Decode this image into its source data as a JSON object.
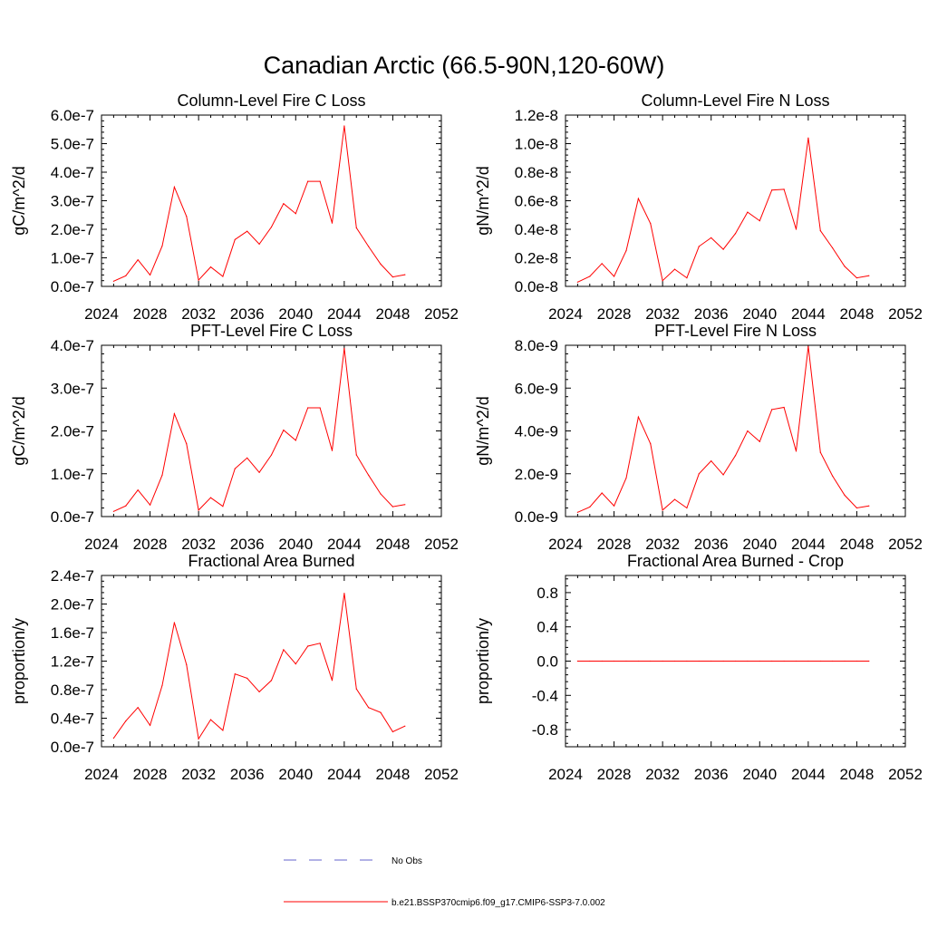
{
  "page_title": "Canadian Arctic (66.5-90N,120-60W)",
  "legend": {
    "items": [
      {
        "label": "No Obs",
        "color": "#6666cc",
        "dash": "dashed"
      },
      {
        "label": "b.e21.BSSP370cmip6.f09_g17.CMIP6-SSP3-7.0.002",
        "color": "#ff0000",
        "dash": "solid"
      }
    ],
    "placement": "bottom-center"
  },
  "chart_data": [
    {
      "type": "line",
      "title": "Column-Level Fire C Loss",
      "xlabel": "",
      "ylabel": "gC/m^2/d",
      "xlim": [
        2024,
        2052
      ],
      "ylim": [
        0,
        6e-07
      ],
      "xticks": [
        2024,
        2028,
        2032,
        2036,
        2040,
        2044,
        2048,
        2052
      ],
      "xtick_labels": [
        "2024",
        "2028",
        "2032",
        "2036",
        "2040",
        "2044",
        "2048",
        "2052"
      ],
      "yticks": [
        0,
        1e-07,
        2e-07,
        3e-07,
        4e-07,
        5e-07,
        6e-07
      ],
      "ytick_labels": [
        "0.0e-7",
        "1.0e-7",
        "2.0e-7",
        "3.0e-7",
        "4.0e-7",
        "5.0e-7",
        "6.0e-7"
      ],
      "series": [
        {
          "color": "#ff0000",
          "x": [
            2025,
            2026,
            2027,
            2028,
            2029,
            2030,
            2031,
            2032,
            2033,
            2034,
            2035,
            2036,
            2037,
            2038,
            2039,
            2040,
            2041,
            2042,
            2043,
            2044,
            2045,
            2046,
            2047,
            2048,
            2049
          ],
          "y": [
            1.8e-08,
            3.7e-08,
            9.3e-08,
            4e-08,
            1.42e-07,
            3.48e-07,
            2.45e-07,
            2.2e-08,
            6.8e-08,
            3.5e-08,
            1.64e-07,
            1.93e-07,
            1.48e-07,
            2.08e-07,
            2.9e-07,
            2.55e-07,
            3.68e-07,
            3.68e-07,
            2.22e-07,
            5.62e-07,
            2.05e-07,
            1.4e-07,
            7.8e-08,
            3.3e-08,
            4.1e-08
          ]
        }
      ]
    },
    {
      "type": "line",
      "title": "Column-Level Fire N Loss",
      "xlabel": "",
      "ylabel": "gN/m^2/d",
      "xlim": [
        2024,
        2052
      ],
      "ylim": [
        0,
        1.2e-08
      ],
      "xticks": [
        2024,
        2028,
        2032,
        2036,
        2040,
        2044,
        2048,
        2052
      ],
      "xtick_labels": [
        "2024",
        "2028",
        "2032",
        "2036",
        "2040",
        "2044",
        "2048",
        "2052"
      ],
      "yticks": [
        0,
        2e-09,
        4e-09,
        6e-09,
        8e-09,
        1e-08,
        1.2e-08
      ],
      "ytick_labels": [
        "0.0e-8",
        "0.2e-8",
        "0.4e-8",
        "0.6e-8",
        "0.8e-8",
        "1.0e-8",
        "1.2e-8"
      ],
      "series": [
        {
          "color": "#ff0000",
          "x": [
            2025,
            2026,
            2027,
            2028,
            2029,
            2030,
            2031,
            2032,
            2033,
            2034,
            2035,
            2036,
            2037,
            2038,
            2039,
            2040,
            2041,
            2042,
            2043,
            2044,
            2045,
            2046,
            2047,
            2048,
            2049
          ],
          "y": [
            3e-10,
            7e-10,
            1.6e-09,
            7e-10,
            2.5e-09,
            6.15e-09,
            4.4e-09,
            4e-10,
            1.2e-09,
            6e-10,
            2.8e-09,
            3.4e-09,
            2.6e-09,
            3.7e-09,
            5.2e-09,
            4.6e-09,
            6.75e-09,
            6.8e-09,
            4e-09,
            1.04e-08,
            3.9e-09,
            2.7e-09,
            1.4e-09,
            6e-10,
            7.5e-10
          ]
        }
      ]
    },
    {
      "type": "line",
      "title": "PFT-Level Fire C Loss",
      "xlabel": "",
      "ylabel": "gC/m^2/d",
      "xlim": [
        2024,
        2052
      ],
      "ylim": [
        0,
        4e-07
      ],
      "xticks": [
        2024,
        2028,
        2032,
        2036,
        2040,
        2044,
        2048,
        2052
      ],
      "xtick_labels": [
        "2024",
        "2028",
        "2032",
        "2036",
        "2040",
        "2044",
        "2048",
        "2052"
      ],
      "yticks": [
        0,
        1e-07,
        2e-07,
        3e-07,
        4e-07
      ],
      "ytick_labels": [
        "0.0e-7",
        "1.0e-7",
        "2.0e-7",
        "3.0e-7",
        "4.0e-7"
      ],
      "series": [
        {
          "color": "#ff0000",
          "x": [
            2025,
            2026,
            2027,
            2028,
            2029,
            2030,
            2031,
            2032,
            2033,
            2034,
            2035,
            2036,
            2037,
            2038,
            2039,
            2040,
            2041,
            2042,
            2043,
            2044,
            2045,
            2046,
            2047,
            2048,
            2049
          ],
          "y": [
            1.2e-08,
            2.5e-08,
            6.2e-08,
            2.7e-08,
            9.7e-08,
            2.4e-07,
            1.7e-07,
            1.5e-08,
            4.4e-08,
            2.4e-08,
            1.12e-07,
            1.37e-07,
            1.03e-07,
            1.44e-07,
            2.02e-07,
            1.78e-07,
            2.54e-07,
            2.54e-07,
            1.54e-07,
            3.93e-07,
            1.44e-07,
            9.7e-08,
            5.3e-08,
            2.3e-08,
            2.8e-08
          ]
        }
      ]
    },
    {
      "type": "line",
      "title": "PFT-Level Fire N Loss",
      "xlabel": "",
      "ylabel": "gN/m^2/d",
      "xlim": [
        2024,
        2052
      ],
      "ylim": [
        0,
        8e-09
      ],
      "xticks": [
        2024,
        2028,
        2032,
        2036,
        2040,
        2044,
        2048,
        2052
      ],
      "xtick_labels": [
        "2024",
        "2028",
        "2032",
        "2036",
        "2040",
        "2044",
        "2048",
        "2052"
      ],
      "yticks": [
        0,
        2e-09,
        4e-09,
        6e-09,
        8e-09
      ],
      "ytick_labels": [
        "0.0e-9",
        "2.0e-9",
        "4.0e-9",
        "6.0e-9",
        "8.0e-9"
      ],
      "series": [
        {
          "color": "#ff0000",
          "x": [
            2025,
            2026,
            2027,
            2028,
            2029,
            2030,
            2031,
            2032,
            2033,
            2034,
            2035,
            2036,
            2037,
            2038,
            2039,
            2040,
            2041,
            2042,
            2043,
            2044,
            2045,
            2046,
            2047,
            2048,
            2049
          ],
          "y": [
            2e-10,
            4.5e-10,
            1.1e-09,
            5e-10,
            1.8e-09,
            4.65e-09,
            3.4e-09,
            3e-10,
            8e-10,
            4e-10,
            2e-09,
            2.6e-09,
            1.95e-09,
            2.85e-09,
            4e-09,
            3.5e-09,
            5e-09,
            5.1e-09,
            3.05e-09,
            7.95e-09,
            3e-09,
            1.9e-09,
            1e-09,
            4e-10,
            5e-10
          ]
        }
      ]
    },
    {
      "type": "line",
      "title": "Fractional Area Burned",
      "xlabel": "",
      "ylabel": "proportion/y",
      "xlim": [
        2024,
        2052
      ],
      "ylim": [
        0,
        2.4e-07
      ],
      "xticks": [
        2024,
        2028,
        2032,
        2036,
        2040,
        2044,
        2048,
        2052
      ],
      "xtick_labels": [
        "2024",
        "2028",
        "2032",
        "2036",
        "2040",
        "2044",
        "2048",
        "2052"
      ],
      "yticks": [
        0,
        4e-08,
        8e-08,
        1.2e-07,
        1.6e-07,
        2e-07,
        2.4e-07
      ],
      "ytick_labels": [
        "0.0e-7",
        "0.4e-7",
        "0.8e-7",
        "1.2e-7",
        "1.6e-7",
        "2.0e-7",
        "2.4e-7"
      ],
      "series": [
        {
          "color": "#ff0000",
          "x": [
            2025,
            2026,
            2027,
            2028,
            2029,
            2030,
            2031,
            2032,
            2033,
            2034,
            2035,
            2036,
            2037,
            2038,
            2039,
            2040,
            2041,
            2042,
            2043,
            2044,
            2045,
            2046,
            2047,
            2048,
            2049
          ],
          "y": [
            1.2e-08,
            3.6e-08,
            5.5e-08,
            3e-08,
            8.6e-08,
            1.74e-07,
            1.15e-07,
            1.1e-08,
            3.8e-08,
            2.3e-08,
            1.02e-07,
            9.6e-08,
            7.7e-08,
            9.3e-08,
            1.36e-07,
            1.16e-07,
            1.41e-07,
            1.45e-07,
            9.3e-08,
            2.15e-07,
            8.1e-08,
            5.5e-08,
            4.8e-08,
            2.1e-08,
            2.9e-08
          ]
        }
      ]
    },
    {
      "type": "line",
      "title": "Fractional Area Burned - Crop",
      "xlabel": "",
      "ylabel": "proportion/y",
      "xlim": [
        2024,
        2052
      ],
      "ylim": [
        -1.0,
        1.0
      ],
      "xticks": [
        2024,
        2028,
        2032,
        2036,
        2040,
        2044,
        2048,
        2052
      ],
      "xtick_labels": [
        "2024",
        "2028",
        "2032",
        "2036",
        "2040",
        "2044",
        "2048",
        "2052"
      ],
      "yticks": [
        -0.8,
        -0.4,
        0.0,
        0.4,
        0.8
      ],
      "ytick_labels": [
        "-0.8",
        "-0.4",
        "0.0",
        "0.4",
        "0.8"
      ],
      "series": [
        {
          "color": "#ff0000",
          "x": [
            2025,
            2026,
            2027,
            2028,
            2029,
            2030,
            2031,
            2032,
            2033,
            2034,
            2035,
            2036,
            2037,
            2038,
            2039,
            2040,
            2041,
            2042,
            2043,
            2044,
            2045,
            2046,
            2047,
            2048,
            2049
          ],
          "y": [
            0,
            0,
            0,
            0,
            0,
            0,
            0,
            0,
            0,
            0,
            0,
            0,
            0,
            0,
            0,
            0,
            0,
            0,
            0,
            0,
            0,
            0,
            0,
            0,
            0
          ]
        }
      ]
    }
  ]
}
